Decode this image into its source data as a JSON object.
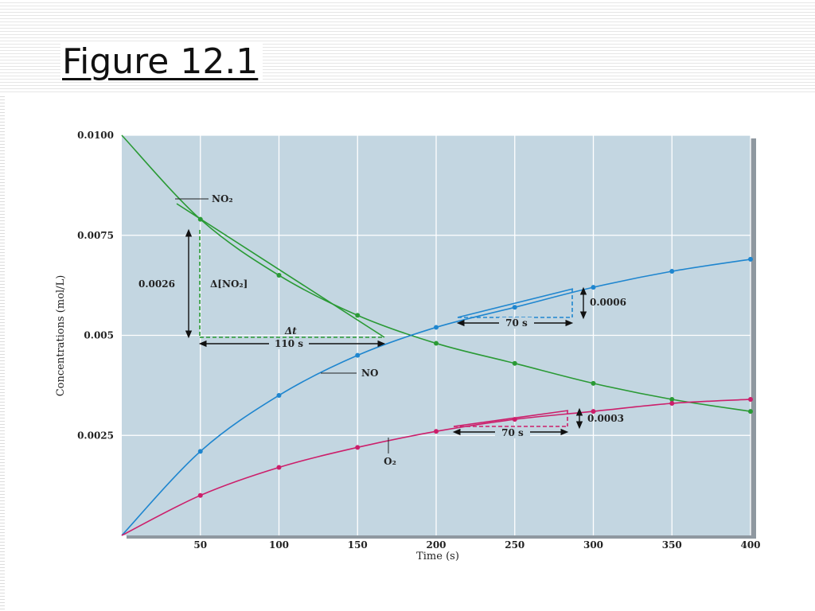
{
  "slide": {
    "title": "Figure 12.1"
  },
  "colors": {
    "plot_bg": "#c3d6e1",
    "grid": "#ffffff",
    "no2": "#2a9a35",
    "no": "#1f86cf",
    "o2": "#cc1f6b"
  },
  "chart_data": {
    "type": "line",
    "title": "",
    "xlabel": "Time (s)",
    "ylabel": "Concentrations (mol/L)",
    "xlim": [
      0,
      400
    ],
    "ylim": [
      0,
      0.01
    ],
    "grid": true,
    "x_ticks": [
      "50",
      "100",
      "150",
      "200",
      "250",
      "300",
      "350",
      "400"
    ],
    "y_ticks": [
      "0.0025",
      "0.005",
      "0.0075",
      "0.0100"
    ],
    "x": [
      0,
      50,
      100,
      150,
      200,
      250,
      300,
      350,
      400
    ],
    "series": [
      {
        "name": "NO₂",
        "color": "#2a9a35",
        "values": [
          0.01,
          0.0079,
          0.0065,
          0.0055,
          0.0048,
          0.0043,
          0.0038,
          0.0034,
          0.0031
        ]
      },
      {
        "name": "NO",
        "color": "#1f86cf",
        "values": [
          0.0,
          0.0021,
          0.0035,
          0.0045,
          0.0052,
          0.0057,
          0.0062,
          0.0066,
          0.0069
        ]
      },
      {
        "name": "O₂",
        "color": "#cc1f6b",
        "values": [
          0.0,
          0.001,
          0.0017,
          0.0022,
          0.0026,
          0.0029,
          0.0031,
          0.0033,
          0.0034
        ]
      }
    ],
    "annotations": {
      "no2_delta_value": "0.0026",
      "no2_delta_label": "Δ[NO₂]",
      "delta_t_label": "Δt",
      "delta_t_value": "110 s",
      "no_delta_value": "0.0006",
      "no_dt_value": "70 s",
      "o2_delta_value": "0.0003",
      "o2_dt_value": "70 s"
    }
  }
}
